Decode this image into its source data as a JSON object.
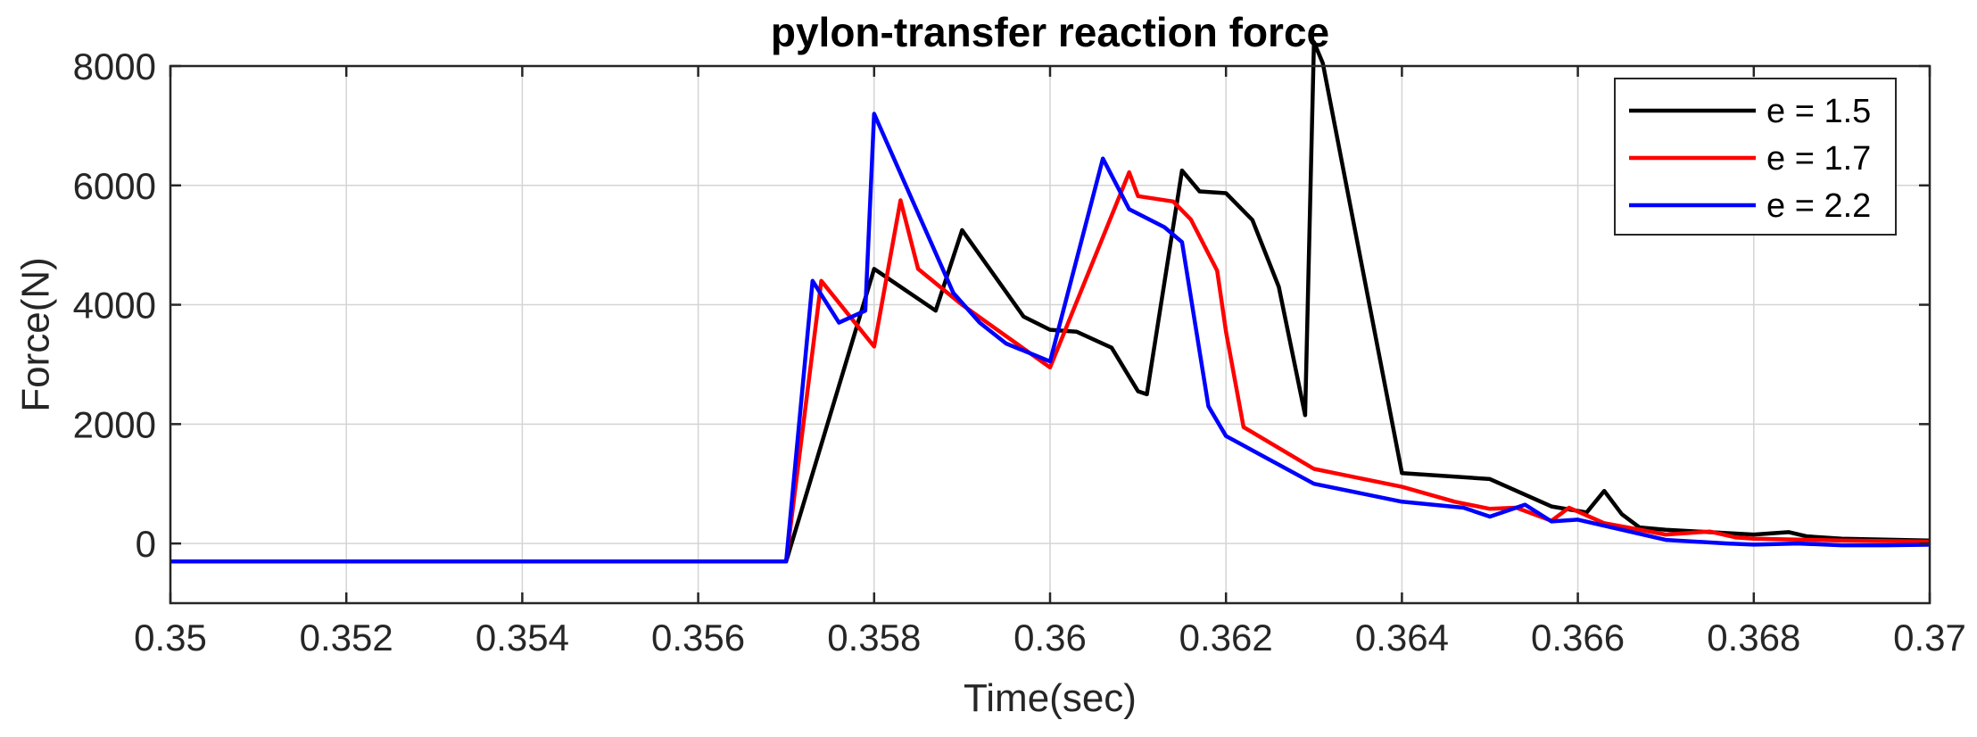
{
  "chart_data": {
    "type": "line",
    "title": "pylon-transfer reaction force",
    "xlabel": "Time(sec)",
    "ylabel": "Force(N)",
    "xlim": [
      0.35,
      0.37
    ],
    "ylim": [
      -1000,
      8000
    ],
    "xticks": [
      0.35,
      0.352,
      0.354,
      0.356,
      0.358,
      0.36,
      0.362,
      0.364,
      0.366,
      0.368,
      0.37
    ],
    "xtick_labels": [
      "0.35",
      "0.352",
      "0.354",
      "0.356",
      "0.358",
      "0.36",
      "0.362",
      "0.364",
      "0.366",
      "0.368",
      "0.37"
    ],
    "yticks": [
      0,
      2000,
      4000,
      6000,
      8000
    ],
    "ytick_labels": [
      "0",
      "2000",
      "4000",
      "6000",
      "8000"
    ],
    "grid": true,
    "legend_position": "top-right",
    "series": [
      {
        "name": "e = 1.5",
        "color": "#000000",
        "x": [
          0.35,
          0.357,
          0.358,
          0.3587,
          0.359,
          0.3597,
          0.36,
          0.3603,
          0.3607,
          0.361,
          0.3611,
          0.3615,
          0.3617,
          0.362,
          0.3623,
          0.3626,
          0.3629,
          0.363,
          0.3631,
          0.364,
          0.365,
          0.3657,
          0.3661,
          0.3663,
          0.3665,
          0.3667,
          0.367,
          0.368,
          0.3684,
          0.3686,
          0.369,
          0.37
        ],
        "y": [
          -300,
          -300,
          4600,
          3900,
          5250,
          3800,
          3580,
          3550,
          3280,
          2550,
          2500,
          6250,
          5900,
          5870,
          5420,
          4300,
          2150,
          8400,
          8050,
          1180,
          1080,
          620,
          520,
          880,
          490,
          270,
          230,
          150,
          190,
          120,
          80,
          50
        ]
      },
      {
        "name": "e = 1.7",
        "color": "#ff0000",
        "x": [
          0.35,
          0.357,
          0.3574,
          0.358,
          0.3583,
          0.3585,
          0.359,
          0.36,
          0.3609,
          0.361,
          0.3614,
          0.3616,
          0.3619,
          0.362,
          0.3622,
          0.363,
          0.364,
          0.3646,
          0.365,
          0.3653,
          0.3657,
          0.3659,
          0.3663,
          0.367,
          0.3675,
          0.3678,
          0.368,
          0.369,
          0.37
        ],
        "y": [
          -300,
          -300,
          4400,
          3300,
          5750,
          4600,
          4000,
          2950,
          6220,
          5820,
          5730,
          5430,
          4570,
          3550,
          1950,
          1250,
          950,
          700,
          580,
          600,
          380,
          600,
          340,
          150,
          200,
          100,
          80,
          50,
          30
        ]
      },
      {
        "name": "e = 2.2",
        "color": "#0000ff",
        "x": [
          0.35,
          0.357,
          0.3573,
          0.3576,
          0.3579,
          0.358,
          0.3589,
          0.3592,
          0.3595,
          0.36,
          0.3606,
          0.3609,
          0.3613,
          0.3615,
          0.3618,
          0.362,
          0.363,
          0.364,
          0.3647,
          0.365,
          0.3654,
          0.3657,
          0.366,
          0.367,
          0.3677,
          0.368,
          0.3685,
          0.369,
          0.3695,
          0.37
        ],
        "y": [
          -300,
          -300,
          4400,
          3700,
          3900,
          7200,
          4200,
          3700,
          3350,
          3050,
          6450,
          5600,
          5300,
          5050,
          2300,
          1800,
          1000,
          700,
          600,
          450,
          650,
          370,
          400,
          60,
          0,
          -20,
          0,
          -30,
          -30,
          -20
        ]
      }
    ]
  }
}
